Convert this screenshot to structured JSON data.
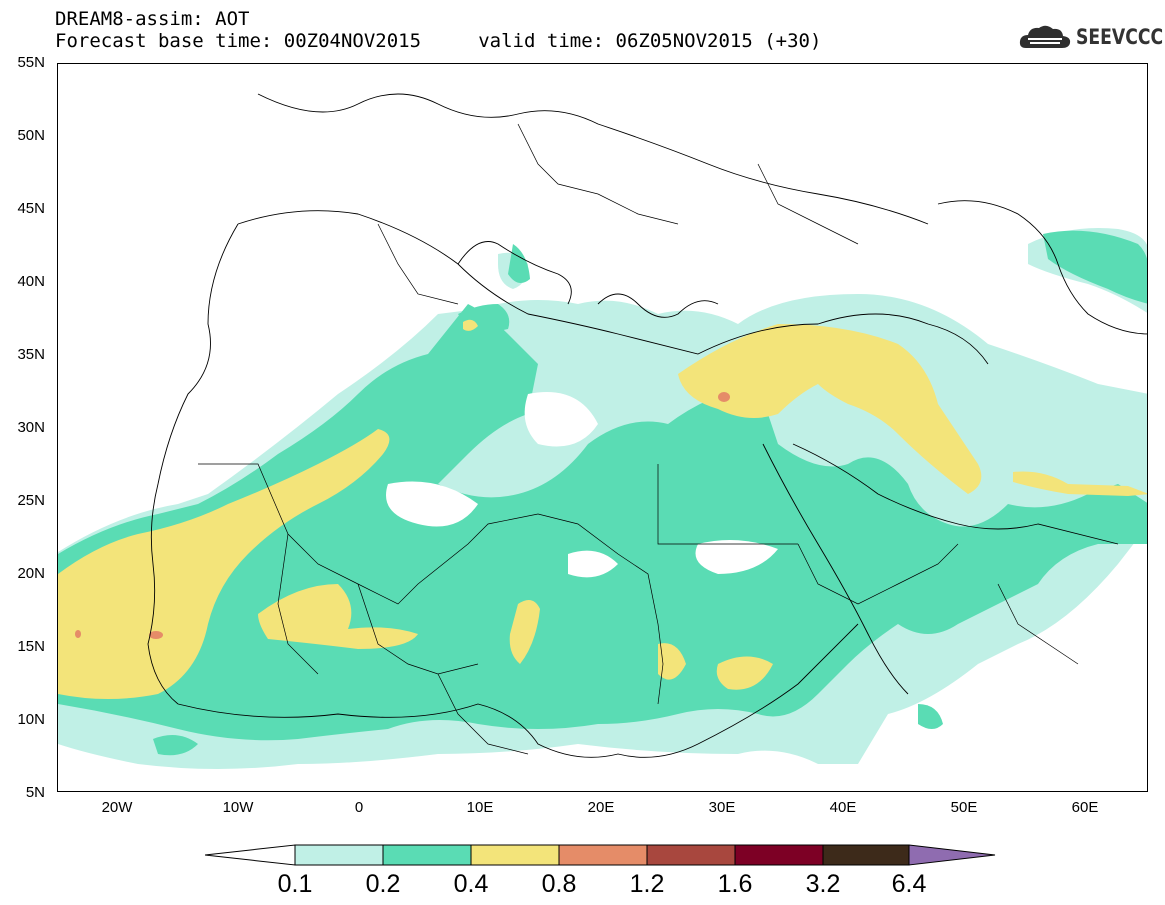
{
  "header": {
    "title": "DREAM8-assim: AOT",
    "subtitle": "Forecast base time: 00Z04NOV2015     valid time: 06Z05NOV2015 (+30)"
  },
  "logo": {
    "icon": "cloud-icon",
    "text": "SEEVCCC"
  },
  "map": {
    "lat_labels": [
      "55N",
      "50N",
      "45N",
      "40N",
      "35N",
      "30N",
      "25N",
      "20N",
      "15N",
      "10N",
      "5N"
    ],
    "lon_labels": [
      "20W",
      "10W",
      "0",
      "10E",
      "20E",
      "30E",
      "40E",
      "50E",
      "60E"
    ],
    "lon_range": [
      -25,
      65
    ],
    "lat_range": [
      5,
      55
    ],
    "colors": {
      "0.1-0.2": "#c0f0e6",
      "0.2-0.4": "#5adcb4",
      "0.4-0.8": "#f3e47a",
      "0.8-1.2": "#e58c68",
      "1.2-1.6": "#a8473e",
      "1.6-3.2": "#7d0025",
      "3.2-6.4": "#3d2a1a",
      "above-6.4": "#8f6cb0"
    }
  },
  "colorbar": {
    "labels": [
      "0.1",
      "0.2",
      "0.4",
      "0.8",
      "1.2",
      "1.6",
      "3.2",
      "6.4"
    ]
  }
}
